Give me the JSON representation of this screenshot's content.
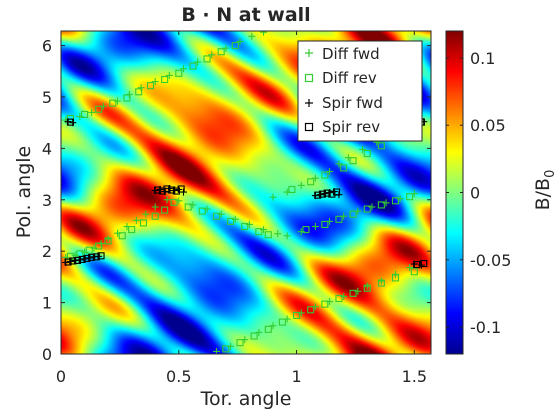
{
  "chart_data": {
    "type": "heatmap",
    "title": "B · N at wall",
    "xlabel": "Tor. angle",
    "ylabel": "Pol. angle",
    "xlim": [
      0,
      1.5708
    ],
    "ylim": [
      0,
      6.2832
    ],
    "x_ticks": [
      0,
      0.5,
      1,
      1.5
    ],
    "x_tick_labels": [
      "0",
      "0.5",
      "1",
      "1.5"
    ],
    "y_ticks": [
      0,
      1,
      2,
      3,
      4,
      5,
      6
    ],
    "y_tick_labels": [
      "0",
      "1",
      "2",
      "3",
      "4",
      "5",
      "6"
    ],
    "colorbar": {
      "label": "B/B",
      "label_subscript": "0",
      "clim": [
        -0.12,
        0.12
      ],
      "ticks": [
        -0.1,
        -0.05,
        0,
        0.05,
        0.1
      ],
      "tick_labels": [
        "-0.1",
        "-0.05",
        "0",
        "0.05",
        "0.1"
      ],
      "colormap": "jet"
    },
    "grid": false,
    "legend_placement": "top-right",
    "series": [
      {
        "name": "Diff fwd",
        "marker": "plus",
        "color": "#33cc33",
        "x": [
          0.02,
          0.08,
          0.13,
          0.18,
          0.24,
          0.29,
          0.34,
          0.4,
          0.46,
          0.52,
          0.58,
          0.64,
          0.7,
          0.76,
          0.81,
          0.86,
          0.02,
          0.06,
          0.1,
          0.14,
          0.17,
          0.2,
          0.24,
          0.28,
          0.32,
          0.36,
          0.4,
          0.45,
          0.5,
          0.56,
          0.62,
          0.68,
          0.74,
          0.8,
          0.86,
          0.92,
          0.96,
          1.02,
          1.08,
          1.14,
          1.2,
          1.26,
          1.32,
          1.38,
          1.44,
          1.5,
          0.9,
          0.96,
          1.02,
          1.08,
          1.14,
          1.18,
          1.22,
          1.28,
          1.34,
          0.66,
          0.72,
          0.78,
          0.84,
          0.9,
          0.96,
          1.02,
          1.08,
          1.14,
          1.2,
          1.26,
          1.3,
          1.36,
          1.42,
          1.48
        ],
        "y": [
          4.55,
          4.62,
          4.7,
          4.82,
          4.92,
          5.05,
          5.18,
          5.3,
          5.42,
          5.55,
          5.68,
          5.82,
          5.95,
          6.08,
          6.18,
          6.26,
          1.88,
          1.92,
          1.98,
          2.06,
          2.15,
          2.24,
          2.35,
          2.48,
          2.6,
          2.72,
          2.86,
          3.0,
          2.98,
          2.9,
          2.82,
          2.72,
          2.62,
          2.52,
          2.42,
          2.34,
          2.3,
          2.38,
          2.48,
          2.58,
          2.68,
          2.78,
          2.86,
          2.94,
          3.02,
          3.12,
          3.05,
          3.15,
          3.28,
          3.42,
          3.55,
          3.7,
          3.82,
          3.98,
          4.12,
          0.05,
          0.15,
          0.28,
          0.42,
          0.55,
          0.68,
          0.8,
          0.92,
          1.02,
          1.12,
          1.22,
          1.32,
          1.42,
          1.55,
          1.68
        ]
      },
      {
        "name": "Diff rev",
        "marker": "square",
        "color": "#33cc33",
        "x": [
          0.04,
          0.1,
          0.16,
          0.22,
          0.28,
          0.33,
          0.38,
          0.44,
          0.5,
          0.56,
          0.62,
          0.68,
          0.74,
          0.04,
          0.08,
          0.12,
          0.16,
          0.2,
          0.26,
          0.3,
          0.35,
          0.4,
          0.44,
          0.48,
          0.54,
          0.6,
          0.66,
          0.72,
          0.78,
          0.84,
          0.88,
          1.04,
          1.12,
          1.18,
          1.24,
          1.3,
          1.36,
          1.42,
          1.48,
          0.98,
          1.06,
          1.12,
          1.2,
          1.24,
          1.3,
          1.36,
          0.7,
          0.76,
          0.82,
          0.88,
          0.94,
          1.0,
          1.06,
          1.12,
          1.18,
          1.24,
          1.3,
          1.36,
          1.42,
          1.5
        ],
        "y": [
          4.58,
          4.66,
          4.76,
          4.88,
          4.98,
          5.1,
          5.22,
          5.34,
          5.46,
          5.6,
          5.74,
          5.88,
          6.0,
          1.9,
          1.95,
          2.02,
          2.1,
          2.2,
          2.3,
          2.42,
          2.55,
          2.68,
          2.8,
          2.95,
          2.86,
          2.78,
          2.68,
          2.58,
          2.48,
          2.38,
          2.32,
          2.42,
          2.52,
          2.62,
          2.72,
          2.82,
          2.9,
          2.98,
          3.06,
          3.2,
          3.35,
          3.48,
          3.62,
          3.76,
          3.9,
          4.05,
          0.1,
          0.22,
          0.35,
          0.48,
          0.62,
          0.75,
          0.86,
          0.97,
          1.08,
          1.18,
          1.28,
          1.38,
          1.48,
          1.6
        ]
      },
      {
        "name": "Spir fwd",
        "marker": "plus",
        "color": "#000000",
        "x": [
          0.02,
          0.04,
          0.06,
          0.08,
          0.1,
          0.12,
          0.14,
          0.16,
          0.4,
          0.42,
          0.44,
          0.46,
          0.48,
          0.5,
          0.52,
          1.08,
          1.1,
          1.12,
          1.14,
          1.16,
          1.18,
          0.03,
          0.05,
          1.52,
          1.54,
          1.5,
          1.53
        ],
        "y": [
          1.78,
          1.8,
          1.82,
          1.83,
          1.85,
          1.87,
          1.89,
          1.9,
          3.18,
          3.2,
          3.16,
          3.22,
          3.18,
          3.2,
          3.15,
          3.08,
          3.1,
          3.12,
          3.14,
          3.16,
          3.1,
          4.52,
          4.5,
          4.5,
          4.52,
          1.75,
          1.73
        ]
      },
      {
        "name": "Spir rev",
        "marker": "square",
        "color": "#000000",
        "x": [
          0.03,
          0.05,
          0.07,
          0.09,
          0.11,
          0.13,
          0.15,
          0.17,
          0.41,
          0.43,
          0.45,
          0.47,
          0.49,
          0.51,
          1.09,
          1.11,
          1.13,
          1.15,
          1.17,
          0.04,
          1.53,
          1.51,
          1.54
        ],
        "y": [
          1.79,
          1.81,
          1.82,
          1.84,
          1.86,
          1.88,
          1.89,
          1.91,
          3.19,
          3.17,
          3.21,
          3.19,
          3.17,
          3.21,
          3.09,
          3.11,
          3.13,
          3.11,
          3.15,
          4.51,
          4.51,
          1.74,
          1.76
        ]
      }
    ]
  }
}
